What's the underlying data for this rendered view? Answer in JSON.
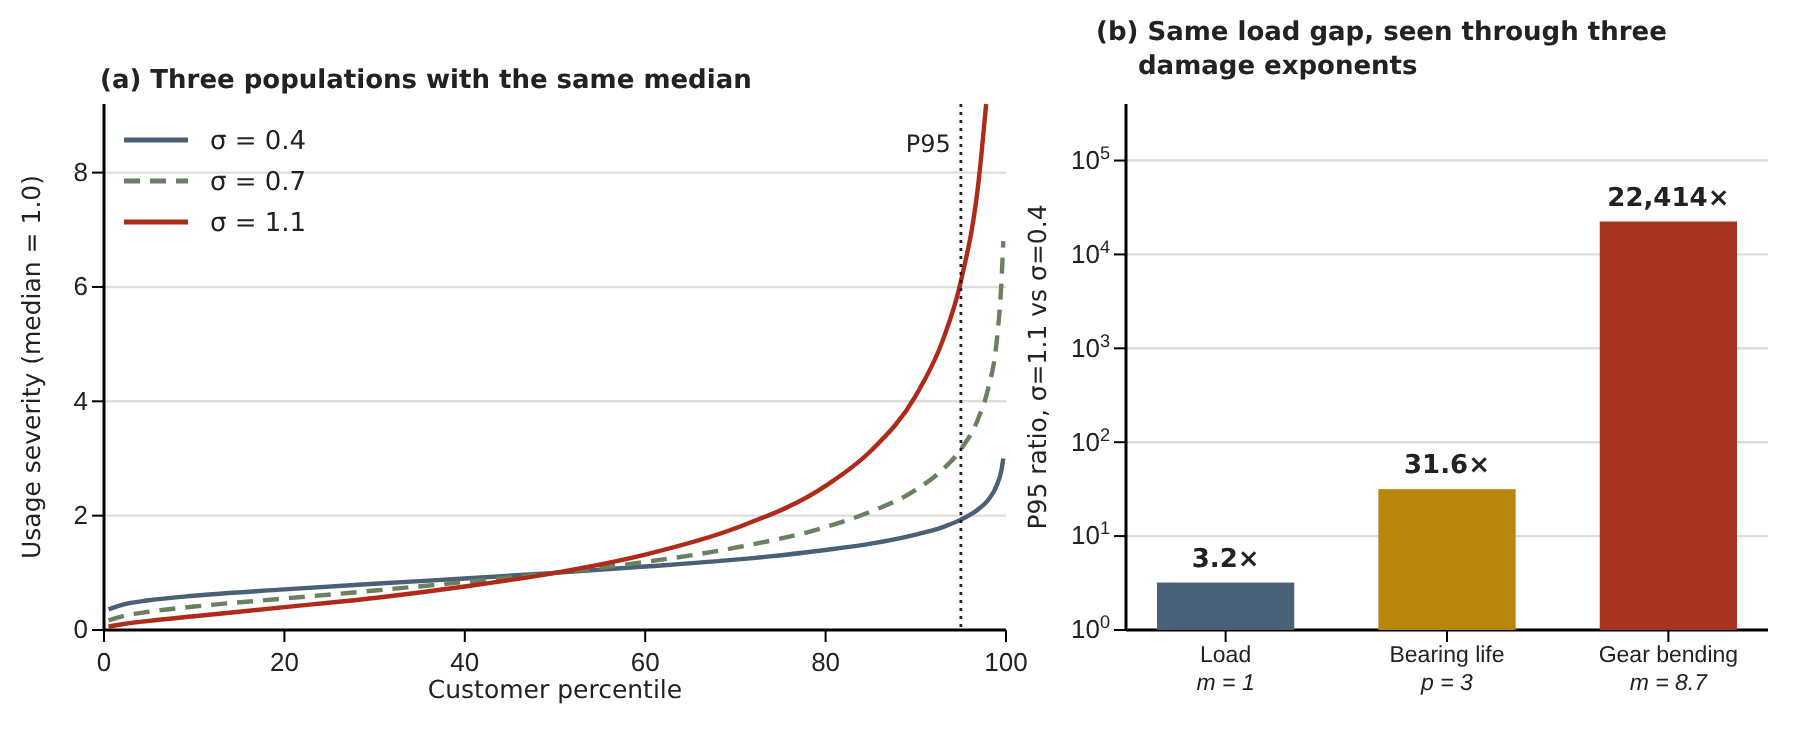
{
  "chart_data": [
    {
      "type": "line",
      "title": "(a)  Three populations with the same median",
      "xlabel": "Customer percentile",
      "ylabel": "Usage severity  (median = 1.0)",
      "x": [
        0.5,
        2,
        5,
        10,
        20,
        30,
        40,
        50,
        60,
        70,
        80,
        85,
        90,
        93,
        95,
        97,
        98,
        99,
        99.5,
        99.7
      ],
      "series": [
        {
          "name": "σ = 0.4",
          "color": "#4a6076",
          "line_style": "solid",
          "values": [
            0.36,
            0.44,
            0.52,
            0.6,
            0.71,
            0.81,
            0.9,
            1,
            1.11,
            1.23,
            1.4,
            1.51,
            1.67,
            1.8,
            1.93,
            2.12,
            2.27,
            2.54,
            2.8,
            3.0
          ]
        },
        {
          "name": "σ = 0.7",
          "color": "#6b8060",
          "line_style": "dashed",
          "values": [
            0.17,
            0.24,
            0.32,
            0.41,
            0.55,
            0.69,
            0.84,
            1,
            1.19,
            1.44,
            1.8,
            2.07,
            2.45,
            2.81,
            3.16,
            3.73,
            4.21,
            5.1,
            6.1,
            6.8
          ]
        },
        {
          "name": "σ = 1.1",
          "color": "#b02a1a",
          "line_style": "solid",
          "x": [
            0.5,
            2,
            5,
            10,
            20,
            30,
            40,
            50,
            60,
            70,
            80,
            85,
            90,
            93,
            95,
            97,
            97.8
          ],
          "values": [
            0.06,
            0.1,
            0.16,
            0.24,
            0.4,
            0.56,
            0.76,
            1,
            1.32,
            1.78,
            2.52,
            3.13,
            4.1,
            5.07,
            6.1,
            7.9,
            9.2
          ]
        }
      ],
      "xlim": [
        0,
        100
      ],
      "xticks": [
        0,
        20,
        40,
        60,
        80,
        100
      ],
      "ylim": [
        0,
        9.2
      ],
      "yticks": [
        0,
        2,
        4,
        6,
        8
      ],
      "grid": "y",
      "legend": "top left",
      "marker": "none",
      "ref_lines": [
        {
          "axis": "x",
          "value": 95,
          "label": "P95",
          "line_style": "dotted",
          "color": "#222222"
        }
      ]
    },
    {
      "type": "bar",
      "title": "(b)  Same load gap, seen through three damage exponents",
      "ylabel": "P95 ratio, σ=1.1 vs σ=0.4",
      "categories": [
        "Load\nm = 1",
        "Bearing life\np = 3",
        "Gear bending\nm = 8.7"
      ],
      "values": [
        3.2,
        31.6,
        22414
      ],
      "colors": [
        "#4b6178",
        "#b8860b",
        "#a83422"
      ],
      "value_labels": [
        "3.2×",
        "31.6×",
        "22,414×"
      ],
      "log": true,
      "ylim": [
        1,
        400000
      ],
      "yticks": [
        {
          "value": 1,
          "label": "10$^{0}$"
        },
        {
          "value": 10,
          "label": "10$^{1}$"
        },
        {
          "value": 100,
          "label": "10$^{2}$"
        },
        {
          "value": 1000,
          "label": "10$^{3}$"
        },
        {
          "value": 10000,
          "label": "10$^{4}$"
        },
        {
          "value": 100000,
          "label": "10$^{5}$"
        }
      ],
      "grid": "y"
    }
  ]
}
